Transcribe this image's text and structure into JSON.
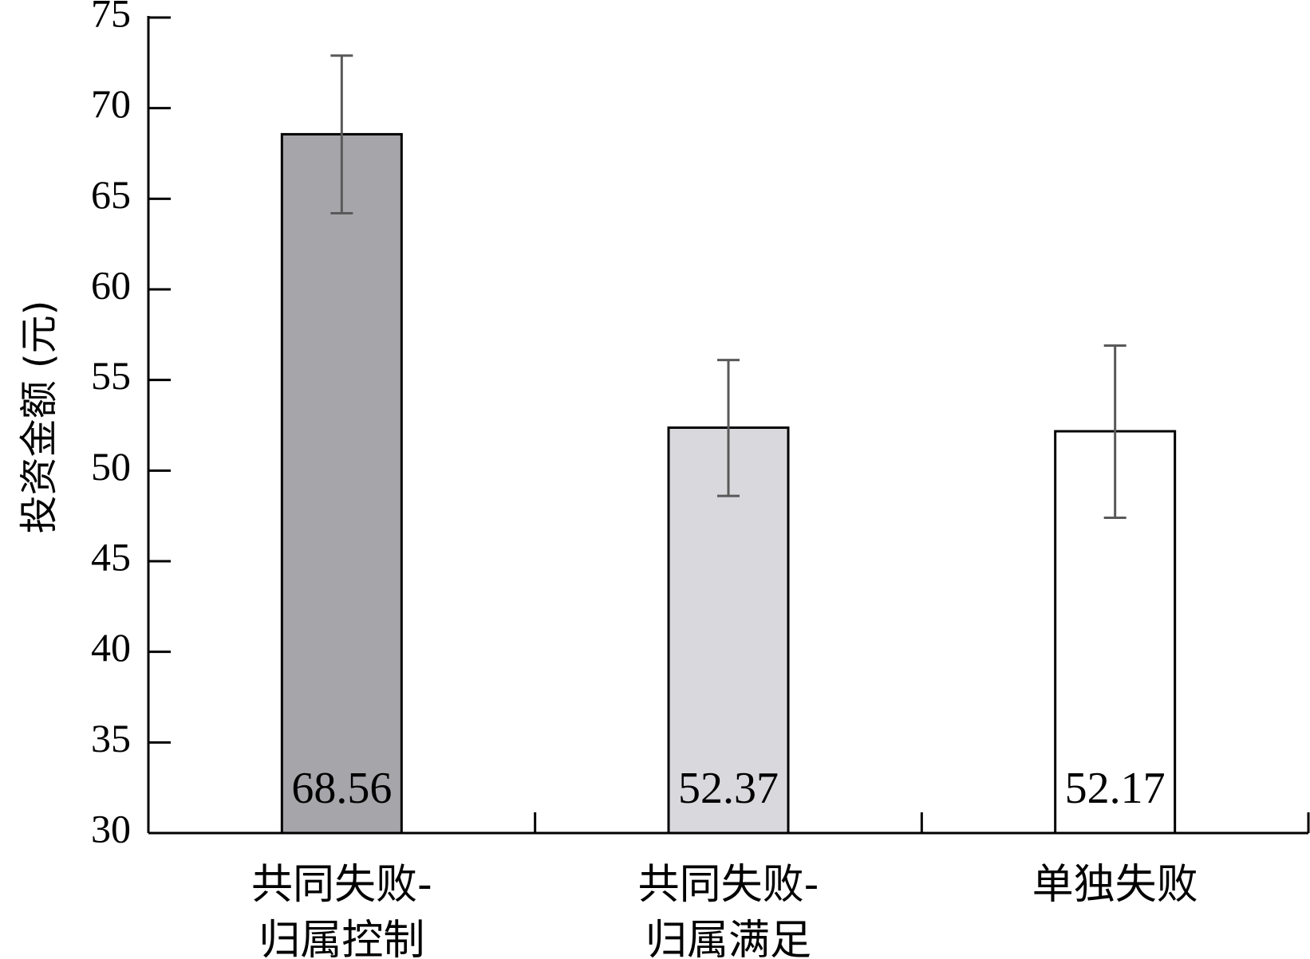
{
  "chart_data": {
    "type": "bar",
    "ylabel": "投资金额 (元)",
    "xlabel": "",
    "ylim": [
      30,
      75
    ],
    "yticks": [
      30,
      35,
      40,
      45,
      50,
      55,
      60,
      65,
      70,
      75
    ],
    "grid": false,
    "categories": [
      {
        "line1": "共同失败-",
        "line2": "归属控制"
      },
      {
        "line1": "共同失败-",
        "line2": "归属满足"
      },
      {
        "line1": "单独失败",
        "line2": ""
      }
    ],
    "values": [
      68.56,
      52.37,
      52.17
    ],
    "data_labels": [
      "68.56",
      "52.37",
      "52.17"
    ],
    "error_bars": [
      {
        "low": 64.2,
        "high": 72.9
      },
      {
        "low": 48.6,
        "high": 56.1
      },
      {
        "low": 47.4,
        "high": 56.9
      }
    ],
    "bar_colors": [
      "#a6a5aa",
      "#d9d8dc",
      "#ffffff"
    ],
    "bar_edge_color": "#000000",
    "error_bar_color": "#595959"
  }
}
